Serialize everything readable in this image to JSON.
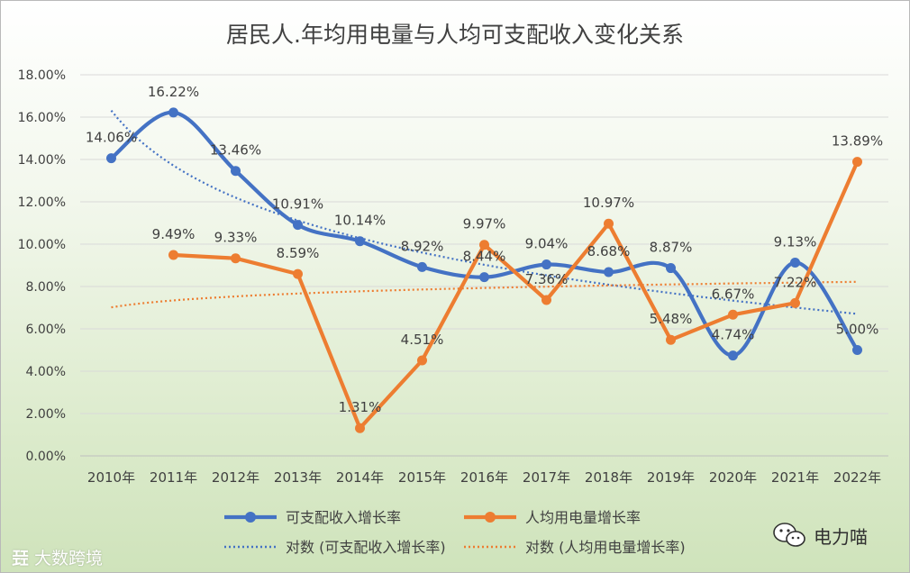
{
  "watermarks": {
    "left_logo": "㠭",
    "left_text": "大数跨境",
    "right_text": "电力喵"
  },
  "chart_data": {
    "type": "line",
    "title": "居民人.年均用电量与人均可支配收入变化关系",
    "xlabel": "",
    "ylabel": "",
    "categories": [
      "2010年",
      "2011年",
      "2012年",
      "2013年",
      "2014年",
      "2015年",
      "2016年",
      "2017年",
      "2018年",
      "2019年",
      "2020年",
      "2021年",
      "2022年"
    ],
    "y_ticks": [
      "0.00%",
      "2.00%",
      "4.00%",
      "6.00%",
      "8.00%",
      "10.00%",
      "12.00%",
      "14.00%",
      "16.00%",
      "18.00%"
    ],
    "ylim": [
      0,
      18
    ],
    "grid": true,
    "legend_position": "bottom",
    "series": [
      {
        "name": "可支配收入增长率",
        "color": "#4472C4",
        "smooth": true,
        "values": [
          14.06,
          16.22,
          13.46,
          10.91,
          10.14,
          8.92,
          8.44,
          9.04,
          8.68,
          8.87,
          4.74,
          9.13,
          5.0
        ],
        "labels": [
          "14.06%",
          "16.22%",
          "13.46%",
          "10.91%",
          "10.14%",
          "8.92%",
          "8.44%",
          "9.04%",
          "8.68%",
          "8.87%",
          "4.74%",
          "9.13%",
          "5.00%"
        ]
      },
      {
        "name": "人均用电量增长率",
        "color": "#ED7D31",
        "smooth": false,
        "values": [
          null,
          9.49,
          9.33,
          8.59,
          1.31,
          4.51,
          9.97,
          7.36,
          10.97,
          5.48,
          6.67,
          7.22,
          13.89
        ],
        "labels": [
          "",
          "9.49%",
          "9.33%",
          "8.59%",
          "1.31%",
          "4.51%",
          "9.97%",
          "7.36%",
          "10.97%",
          "5.48%",
          "6.67%",
          "7.22%",
          "13.89%"
        ]
      }
    ],
    "trendlines": [
      {
        "name": "对数 (可支配收入增长率)",
        "of_series": 0,
        "type": "logarithmic",
        "color": "#4472C4"
      },
      {
        "name": "对数 (人均用电量增长率)",
        "of_series": 1,
        "type": "logarithmic",
        "color": "#ED7D31"
      }
    ]
  }
}
